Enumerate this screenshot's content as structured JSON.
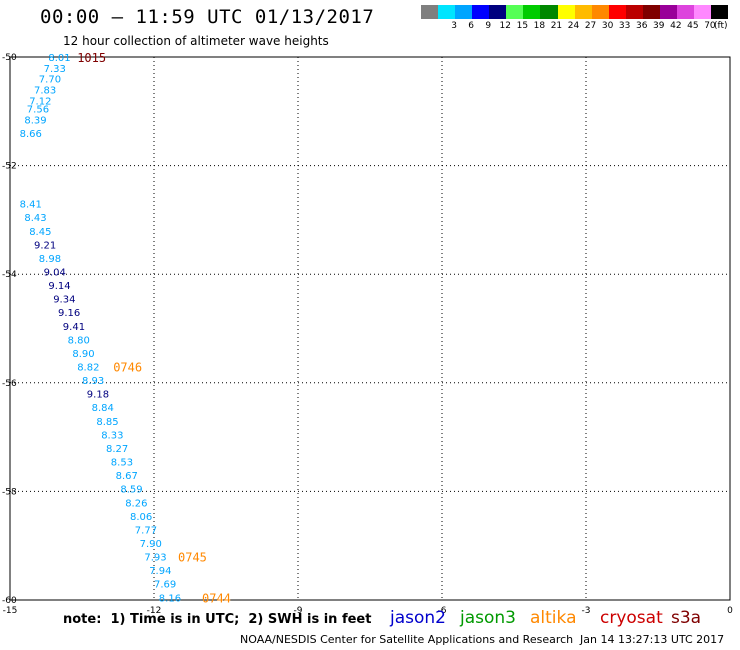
{
  "header": {
    "title": "00:00 – 11:59 UTC 01/13/2017",
    "subtitle": "12 hour collection of altimeter wave heights"
  },
  "colorbar": {
    "colors": [
      "#7f7f7f",
      "#00e5ff",
      "#00a5ff",
      "#0000ff",
      "#00007f",
      "#55ff55",
      "#00cc00",
      "#008800",
      "#ffff00",
      "#ffbb00",
      "#ff8800",
      "#ff0000",
      "#bb0000",
      "#7f0000",
      "#990099",
      "#dd44dd",
      "#ff88ff",
      "#000000"
    ],
    "labels": [
      "3",
      "6",
      "9",
      "12",
      "15",
      "18",
      "21",
      "24",
      "27",
      "30",
      "33",
      "36",
      "39",
      "42",
      "45",
      "70"
    ],
    "unit": "(ft)"
  },
  "map": {
    "lon_ticks": [
      "-15",
      "-12",
      "-9",
      "-6",
      "-3",
      "0"
    ],
    "lat_ticks": [
      "-50",
      "-52",
      "-54",
      "-56",
      "-58",
      "-60"
    ],
    "lon_range": [
      -15,
      0
    ],
    "lat_range": [
      -50,
      -60
    ],
    "gridlines": "dotted"
  },
  "observations": [
    {
      "v": "8.01",
      "lon": -14.2,
      "lat": -50.0,
      "c": "#00a5ff"
    },
    {
      "v": "7.33",
      "lon": -14.3,
      "lat": -50.2,
      "c": "#00a5ff"
    },
    {
      "v": "7.70",
      "lon": -14.4,
      "lat": -50.4,
      "c": "#00a5ff"
    },
    {
      "v": "7.83",
      "lon": -14.5,
      "lat": -50.6,
      "c": "#00a5ff"
    },
    {
      "v": "7.12",
      "lon": -14.6,
      "lat": -50.8,
      "c": "#00a5ff"
    },
    {
      "v": "7.56",
      "lon": -14.65,
      "lat": -50.95,
      "c": "#00a5ff"
    },
    {
      "v": "8.39",
      "lon": -14.7,
      "lat": -51.15,
      "c": "#00a5ff"
    },
    {
      "v": "8.66",
      "lon": -14.8,
      "lat": -51.4,
      "c": "#00a5ff"
    },
    {
      "v": "8.41",
      "lon": -14.8,
      "lat": -52.7,
      "c": "#00a5ff"
    },
    {
      "v": "8.43",
      "lon": -14.7,
      "lat": -52.95,
      "c": "#00a5ff"
    },
    {
      "v": "8.45",
      "lon": -14.6,
      "lat": -53.2,
      "c": "#00a5ff"
    },
    {
      "v": "9.21",
      "lon": -14.5,
      "lat": -53.45,
      "c": "#00007f"
    },
    {
      "v": "8.98",
      "lon": -14.4,
      "lat": -53.7,
      "c": "#00a5ff"
    },
    {
      "v": "9.04",
      "lon": -14.3,
      "lat": -53.95,
      "c": "#00007f"
    },
    {
      "v": "9.14",
      "lon": -14.2,
      "lat": -54.2,
      "c": "#00007f"
    },
    {
      "v": "9.34",
      "lon": -14.1,
      "lat": -54.45,
      "c": "#00007f"
    },
    {
      "v": "9.16",
      "lon": -14.0,
      "lat": -54.7,
      "c": "#00007f"
    },
    {
      "v": "9.41",
      "lon": -13.9,
      "lat": -54.95,
      "c": "#00007f"
    },
    {
      "v": "8.80",
      "lon": -13.8,
      "lat": -55.2,
      "c": "#00a5ff"
    },
    {
      "v": "8.90",
      "lon": -13.7,
      "lat": -55.45,
      "c": "#00a5ff"
    },
    {
      "v": "8.82",
      "lon": -13.6,
      "lat": -55.7,
      "c": "#00a5ff"
    },
    {
      "v": "8.93",
      "lon": -13.5,
      "lat": -55.95,
      "c": "#00a5ff"
    },
    {
      "v": "9.18",
      "lon": -13.4,
      "lat": -56.2,
      "c": "#00007f"
    },
    {
      "v": "8.84",
      "lon": -13.3,
      "lat": -56.45,
      "c": "#00a5ff"
    },
    {
      "v": "8.85",
      "lon": -13.2,
      "lat": -56.7,
      "c": "#00a5ff"
    },
    {
      "v": "8.33",
      "lon": -13.1,
      "lat": -56.95,
      "c": "#00a5ff"
    },
    {
      "v": "8.27",
      "lon": -13.0,
      "lat": -57.2,
      "c": "#00a5ff"
    },
    {
      "v": "8.53",
      "lon": -12.9,
      "lat": -57.45,
      "c": "#00a5ff"
    },
    {
      "v": "8.67",
      "lon": -12.8,
      "lat": -57.7,
      "c": "#00a5ff"
    },
    {
      "v": "8.59",
      "lon": -12.7,
      "lat": -57.95,
      "c": "#00a5ff"
    },
    {
      "v": "8.26",
      "lon": -12.6,
      "lat": -58.2,
      "c": "#00a5ff"
    },
    {
      "v": "8.06",
      "lon": -12.5,
      "lat": -58.45,
      "c": "#00a5ff"
    },
    {
      "v": "7.77",
      "lon": -12.4,
      "lat": -58.7,
      "c": "#00a5ff"
    },
    {
      "v": "7.90",
      "lon": -12.3,
      "lat": -58.95,
      "c": "#00a5ff"
    },
    {
      "v": "7.93",
      "lon": -12.2,
      "lat": -59.2,
      "c": "#00a5ff"
    },
    {
      "v": "7.94",
      "lon": -12.1,
      "lat": -59.45,
      "c": "#00a5ff"
    },
    {
      "v": "7.69",
      "lon": -12.0,
      "lat": -59.7,
      "c": "#00a5ff"
    },
    {
      "v": "8.16",
      "lon": -11.9,
      "lat": -59.95,
      "c": "#00a5ff"
    }
  ],
  "times": [
    {
      "v": "1015",
      "lon": -13.6,
      "lat": -50.0,
      "c": "#7f0000"
    },
    {
      "v": "0746",
      "lon": -12.85,
      "lat": -55.7,
      "c": "#ff8800"
    },
    {
      "v": "0745",
      "lon": -11.5,
      "lat": -59.2,
      "c": "#ff8800"
    },
    {
      "v": "0744",
      "lon": -11.0,
      "lat": -59.95,
      "c": "#ff8800"
    }
  ],
  "note": "note:  1) Time is in UTC;  2) SWH is in feet",
  "legend": [
    {
      "label": "jason2",
      "color": "#0000cc"
    },
    {
      "label": "jason3",
      "color": "#009900"
    },
    {
      "label": "altika",
      "color": "#ff8800"
    },
    {
      "label": "cryosat",
      "color": "#cc0000"
    },
    {
      "label": "s3a",
      "color": "#7f0000"
    }
  ],
  "footer": {
    "center": "NOAA/NESDIS Center for Satellite Applications and Research",
    "timestamp": "Jan 14 13:27:13 UTC 2017"
  }
}
